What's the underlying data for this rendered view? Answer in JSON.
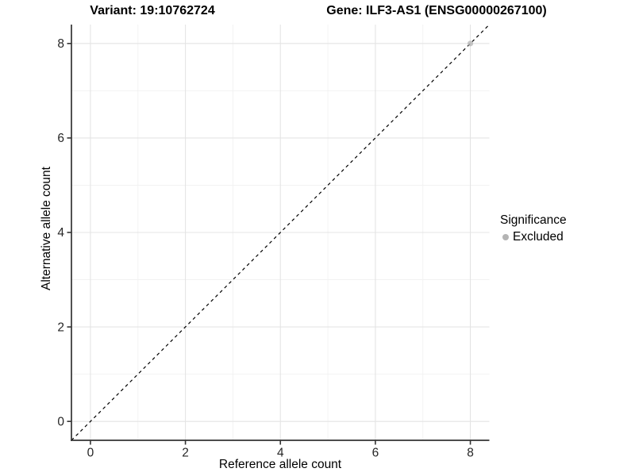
{
  "chart_data": {
    "type": "scatter",
    "title_left": "Variant: 19:10762724",
    "title_right": "Gene: ILF3-AS1 (ENSG00000267100)",
    "xlabel": "Reference allele count",
    "ylabel": "Alternative allele count",
    "xlim": [
      -0.4,
      8.4
    ],
    "ylim": [
      -0.4,
      8.4
    ],
    "xticks": [
      0,
      2,
      4,
      6,
      8
    ],
    "yticks": [
      0,
      2,
      4,
      6,
      8
    ],
    "xticks_minor": [
      1,
      3,
      5,
      7
    ],
    "yticks_minor": [
      1,
      3,
      5,
      7
    ],
    "grid": "major and minor gridlines on white panel, no top/right border",
    "identity_line": {
      "type": "abline y=x",
      "style": "dashed",
      "color": "#000000"
    },
    "series": [
      {
        "name": "Excluded",
        "color": "#b4b4b4",
        "opacity": 0.75,
        "points": [
          {
            "x": 8,
            "y": 8
          }
        ]
      }
    ],
    "legend": {
      "title": "Significance",
      "position": "right",
      "items": [
        {
          "label": "Excluded",
          "color": "#b4b4b4"
        }
      ]
    }
  },
  "colors": {
    "background": "#ffffff",
    "axis_line": "#333333",
    "tick_label": "#262626",
    "grid_major": "#e4e4e4",
    "grid_minor": "#f2f2f2",
    "title_text": "#000000",
    "excluded_point": "#b4b4b4"
  }
}
